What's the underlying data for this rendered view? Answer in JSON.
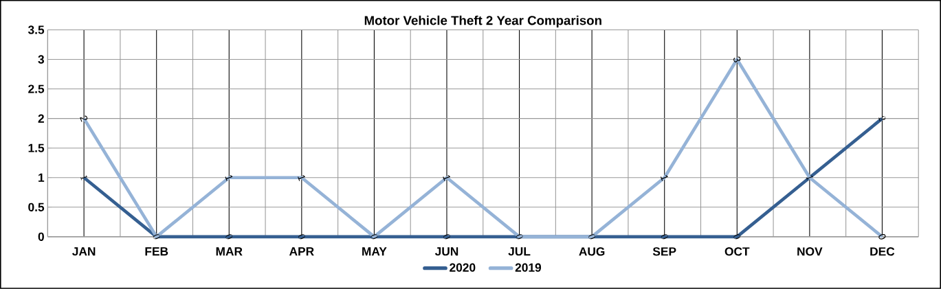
{
  "chart_data": {
    "type": "line",
    "title": "Motor Vehicle Theft 2 Year Comparison",
    "categories": [
      "JAN",
      "FEB",
      "MAR",
      "APR",
      "MAY",
      "JUN",
      "JUL",
      "AUG",
      "SEP",
      "OCT",
      "NOV",
      "DEC"
    ],
    "series": [
      {
        "name": "2020",
        "color": "#355f91",
        "values": [
          1,
          0,
          0,
          0,
          0,
          0,
          0,
          0,
          0,
          0,
          1,
          2
        ]
      },
      {
        "name": "2019",
        "color": "#95b3d7",
        "values": [
          2,
          0,
          1,
          1,
          0,
          1,
          0,
          0,
          1,
          3,
          1,
          0
        ],
        "value_labels": [
          "2",
          null,
          "1",
          "1",
          null,
          "1",
          null,
          null,
          "1",
          "3",
          null,
          "0"
        ]
      }
    ],
    "ylim": [
      0,
      3.5
    ],
    "yticks": [
      0,
      0.5,
      1,
      1.5,
      2,
      2.5,
      3,
      3.5
    ],
    "grid": true,
    "legend": "bottom",
    "data_labels": true,
    "marker": "none",
    "line_style": "solid"
  }
}
